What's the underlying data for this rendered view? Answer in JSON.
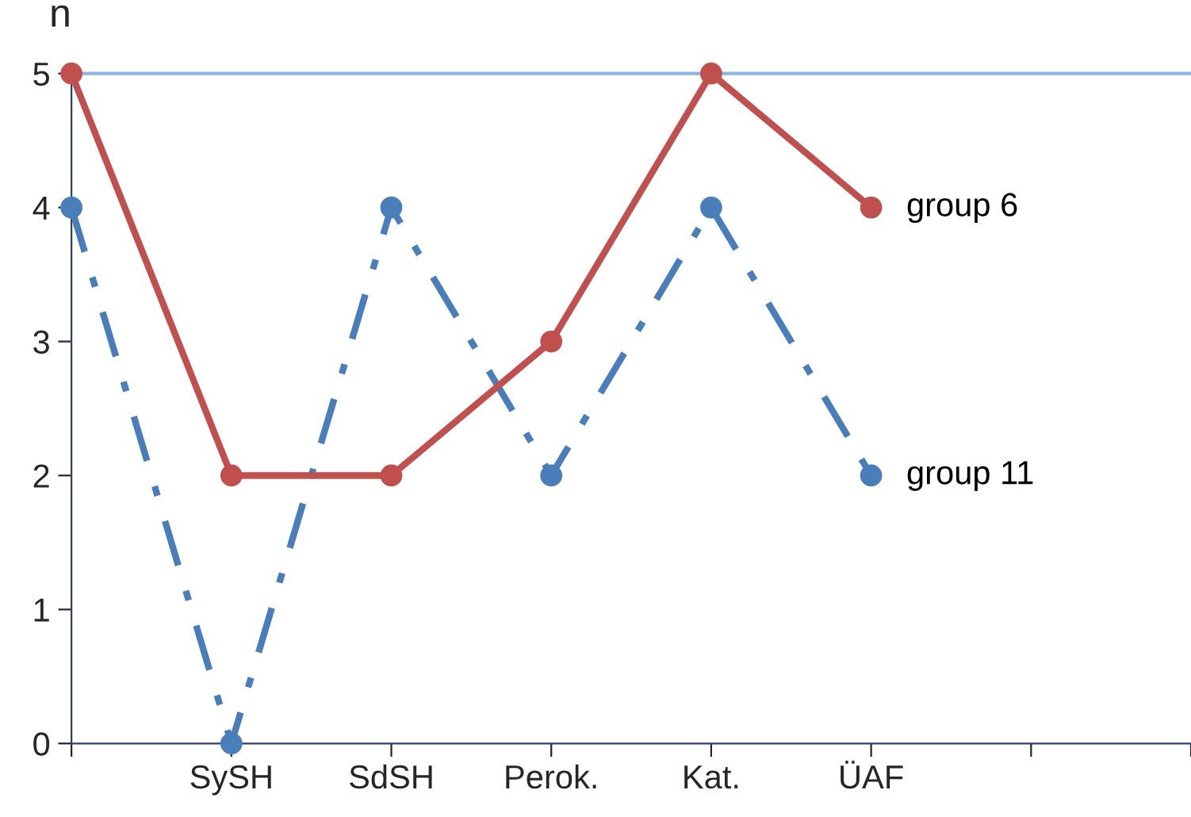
{
  "chart_data": {
    "type": "line",
    "ylabel": "n",
    "categories": [
      null,
      "SySH",
      "SdSH",
      "Perok.",
      "Kat.",
      "ÜAF",
      null
    ],
    "series": [
      {
        "name": "group 11",
        "color": "#4a7ebb",
        "values": [
          4,
          0,
          4,
          2,
          4,
          2,
          null
        ],
        "line_style": "dashed"
      },
      {
        "name": "group 6",
        "color": "#c0504d",
        "values": [
          5,
          2,
          2,
          3,
          5,
          4,
          null
        ],
        "line_style": "solid"
      }
    ],
    "ylim": [
      0,
      5
    ],
    "yticks": [
      0,
      1,
      2,
      3,
      4,
      5
    ],
    "marker": "circle",
    "grid": false,
    "legend": false,
    "ref_lines": [
      {
        "axis": "y",
        "value": 5,
        "color": "#8eb4e3"
      }
    ]
  }
}
